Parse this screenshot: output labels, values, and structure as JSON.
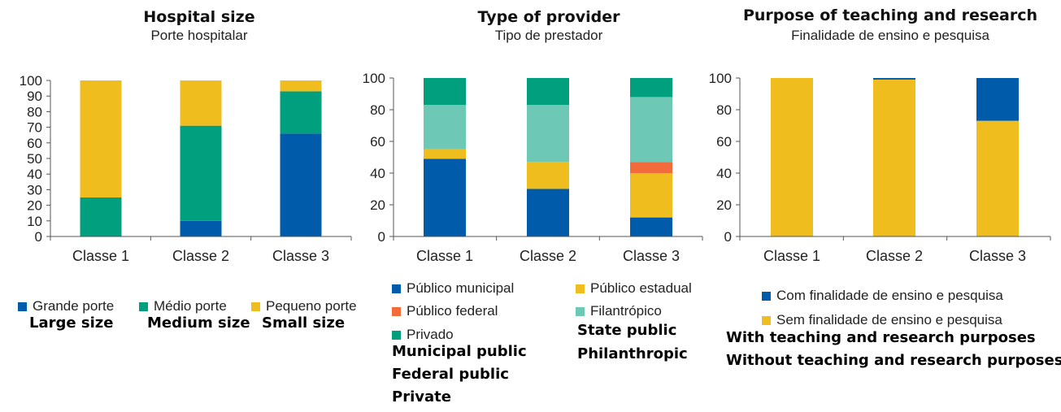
{
  "colors": {
    "blue": "#005cab",
    "green": "#00a07f",
    "yellow": "#f0bd1f",
    "orange": "#f26b3b",
    "teal": "#6dc8b6"
  },
  "chart_data": [
    {
      "type": "bar",
      "stacked": true,
      "title": "Hospital size",
      "subtitle": "Porte hospitalar",
      "categories": [
        "Classe 1",
        "Classe 2",
        "Classe 3"
      ],
      "yticks": [
        0,
        10,
        20,
        30,
        40,
        50,
        60,
        70,
        80,
        90,
        100
      ],
      "ylim": [
        0,
        100
      ],
      "series": [
        {
          "name": "Grande porte",
          "translation": "Large size",
          "color": "#005cab",
          "values": [
            0,
            10,
            66
          ]
        },
        {
          "name": "Médio porte",
          "translation": "Medium size",
          "color": "#00a07f",
          "values": [
            25,
            61,
            27
          ]
        },
        {
          "name": "Pequeno porte",
          "translation": "Small size",
          "color": "#f0bd1f",
          "values": [
            75,
            29,
            7
          ]
        }
      ]
    },
    {
      "type": "bar",
      "stacked": true,
      "title": "Type of provider",
      "subtitle": "Tipo de prestador",
      "categories": [
        "Classe 1",
        "Classe 2",
        "Classe 3"
      ],
      "yticks": [
        0,
        20,
        40,
        60,
        80,
        100
      ],
      "ylim": [
        0,
        100
      ],
      "series": [
        {
          "name": "Público municipal",
          "translation": "Municipal public",
          "color": "#005cab",
          "values": [
            49,
            30,
            12
          ]
        },
        {
          "name": "Público estadual",
          "translation": "State public",
          "color": "#f0bd1f",
          "values": [
            6,
            17,
            28
          ]
        },
        {
          "name": "Público federal",
          "translation": "Federal public",
          "color": "#f26b3b",
          "values": [
            0,
            0,
            7
          ]
        },
        {
          "name": "Filantrópico",
          "translation": "Philanthropic",
          "color": "#6dc8b6",
          "values": [
            28,
            36,
            41
          ]
        },
        {
          "name": "Privado",
          "translation": "Private",
          "color": "#00a07f",
          "values": [
            17,
            17,
            12
          ]
        }
      ]
    },
    {
      "type": "bar",
      "stacked": true,
      "title": "Purpose of teaching and research",
      "subtitle": "Finalidade de ensino e pesquisa",
      "categories": [
        "Classe 1",
        "Classe 2",
        "Classe 3"
      ],
      "yticks": [
        0,
        20,
        40,
        60,
        80,
        100
      ],
      "ylim": [
        0,
        100
      ],
      "series": [
        {
          "name": "Sem finalidade de ensino e pesquisa",
          "translation": "Without teaching and research purposes",
          "color": "#f0bd1f",
          "values": [
            100,
            99,
            73
          ]
        },
        {
          "name": "Com finalidade de ensino e pesquisa",
          "translation": "With teaching and research purposes",
          "color": "#005cab",
          "values": [
            0,
            1,
            27
          ]
        }
      ]
    }
  ]
}
